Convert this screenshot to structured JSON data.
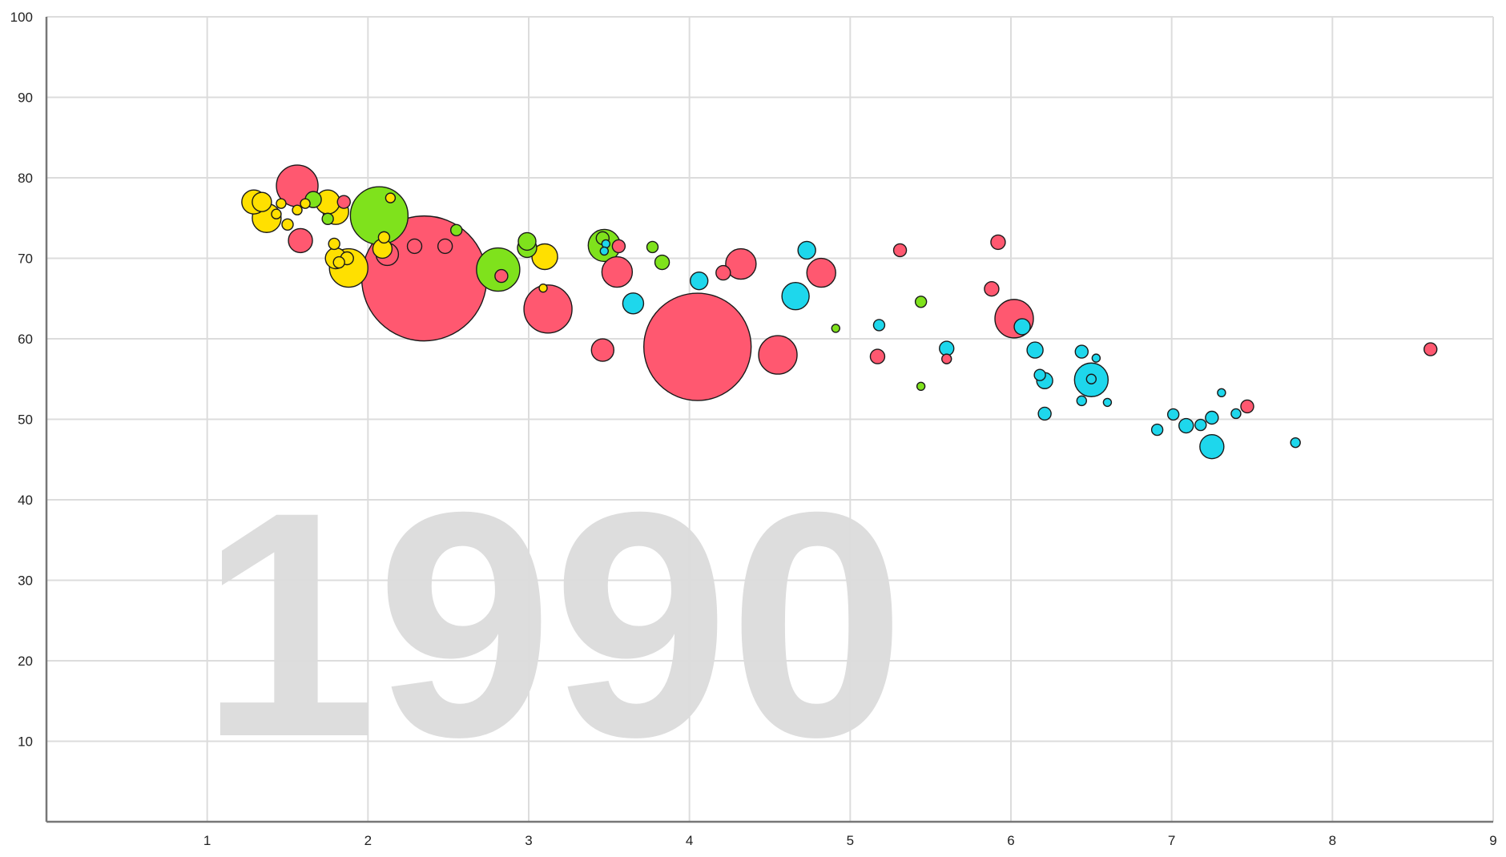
{
  "chart_data": {
    "type": "scatter",
    "title": "",
    "xlabel": "",
    "ylabel": "",
    "xlim": [
      0,
      9
    ],
    "ylim": [
      0,
      100
    ],
    "x_ticks": [
      1,
      2,
      3,
      4,
      5,
      6,
      7,
      8,
      9
    ],
    "y_ticks": [
      10,
      20,
      30,
      40,
      50,
      60,
      70,
      80,
      90,
      100
    ],
    "grid": true,
    "bubble_size_encodes": "population",
    "watermark": "1990",
    "colors": {
      "yellow": "#ffe000",
      "red": "#ff5870",
      "green": "#7fe21c",
      "cyan": "#1ed7ec"
    },
    "series": [
      {
        "color": "red",
        "points": [
          {
            "x": 2.35,
            "y": 67.5,
            "r": 78
          },
          {
            "x": 4.05,
            "y": 59.0,
            "r": 67
          },
          {
            "x": 1.56,
            "y": 79.0,
            "r": 26
          },
          {
            "x": 3.12,
            "y": 63.7,
            "r": 30
          },
          {
            "x": 4.55,
            "y": 58.0,
            "r": 24
          },
          {
            "x": 6.02,
            "y": 62.5,
            "r": 24
          },
          {
            "x": 3.55,
            "y": 68.3,
            "r": 19
          },
          {
            "x": 4.32,
            "y": 69.3,
            "r": 19
          },
          {
            "x": 4.82,
            "y": 68.2,
            "r": 18
          },
          {
            "x": 1.58,
            "y": 72.2,
            "r": 15
          },
          {
            "x": 3.46,
            "y": 58.6,
            "r": 14
          },
          {
            "x": 2.12,
            "y": 70.5,
            "r": 14
          },
          {
            "x": 2.29,
            "y": 71.5,
            "r": 9
          },
          {
            "x": 2.48,
            "y": 71.5,
            "r": 9
          },
          {
            "x": 1.85,
            "y": 77.0,
            "r": 8
          },
          {
            "x": 2.83,
            "y": 67.8,
            "r": 8
          },
          {
            "x": 3.56,
            "y": 71.5,
            "r": 8
          },
          {
            "x": 4.21,
            "y": 68.2,
            "r": 9
          },
          {
            "x": 5.31,
            "y": 71.0,
            "r": 8
          },
          {
            "x": 5.92,
            "y": 72.0,
            "r": 9
          },
          {
            "x": 5.88,
            "y": 66.2,
            "r": 9
          },
          {
            "x": 5.17,
            "y": 57.8,
            "r": 9
          },
          {
            "x": 5.6,
            "y": 57.5,
            "r": 6
          },
          {
            "x": 7.47,
            "y": 51.6,
            "r": 8
          },
          {
            "x": 8.61,
            "y": 58.7,
            "r": 8
          }
        ]
      },
      {
        "color": "yellow",
        "points": [
          {
            "x": 1.37,
            "y": 75.0,
            "r": 18
          },
          {
            "x": 1.29,
            "y": 77.0,
            "r": 15
          },
          {
            "x": 1.34,
            "y": 77.0,
            "r": 12
          },
          {
            "x": 1.75,
            "y": 77.0,
            "r": 15
          },
          {
            "x": 1.8,
            "y": 75.8,
            "r": 16
          },
          {
            "x": 1.88,
            "y": 68.8,
            "r": 24
          },
          {
            "x": 1.8,
            "y": 70.0,
            "r": 13
          },
          {
            "x": 3.1,
            "y": 70.2,
            "r": 16
          },
          {
            "x": 2.09,
            "y": 71.2,
            "r": 12
          },
          {
            "x": 1.87,
            "y": 70.0,
            "r": 8
          },
          {
            "x": 1.82,
            "y": 69.5,
            "r": 7
          },
          {
            "x": 1.79,
            "y": 71.8,
            "r": 7
          },
          {
            "x": 2.1,
            "y": 72.6,
            "r": 7
          },
          {
            "x": 2.14,
            "y": 77.5,
            "r": 6
          },
          {
            "x": 1.43,
            "y": 75.5,
            "r": 6
          },
          {
            "x": 1.56,
            "y": 76.0,
            "r": 6
          },
          {
            "x": 1.61,
            "y": 76.8,
            "r": 6
          },
          {
            "x": 1.46,
            "y": 76.8,
            "r": 6
          },
          {
            "x": 1.5,
            "y": 74.2,
            "r": 7
          },
          {
            "x": 3.09,
            "y": 66.3,
            "r": 5
          }
        ]
      },
      {
        "color": "green",
        "points": [
          {
            "x": 2.07,
            "y": 75.3,
            "r": 36
          },
          {
            "x": 2.81,
            "y": 68.6,
            "r": 27
          },
          {
            "x": 3.47,
            "y": 71.6,
            "r": 20
          },
          {
            "x": 2.99,
            "y": 71.3,
            "r": 12
          },
          {
            "x": 2.99,
            "y": 72.1,
            "r": 11
          },
          {
            "x": 1.66,
            "y": 77.3,
            "r": 10
          },
          {
            "x": 3.83,
            "y": 69.5,
            "r": 9
          },
          {
            "x": 3.46,
            "y": 72.5,
            "r": 8
          },
          {
            "x": 2.55,
            "y": 73.5,
            "r": 7
          },
          {
            "x": 3.77,
            "y": 71.4,
            "r": 7
          },
          {
            "x": 1.75,
            "y": 74.9,
            "r": 7
          },
          {
            "x": 5.44,
            "y": 64.6,
            "r": 7
          },
          {
            "x": 4.91,
            "y": 61.3,
            "r": 5
          },
          {
            "x": 5.44,
            "y": 54.1,
            "r": 5
          }
        ]
      },
      {
        "color": "cyan",
        "points": [
          {
            "x": 6.5,
            "y": 54.9,
            "r": 21
          },
          {
            "x": 4.66,
            "y": 65.3,
            "r": 17
          },
          {
            "x": 7.25,
            "y": 46.6,
            "r": 15
          },
          {
            "x": 3.65,
            "y": 64.4,
            "r": 13
          },
          {
            "x": 4.73,
            "y": 71.0,
            "r": 11
          },
          {
            "x": 4.06,
            "y": 67.2,
            "r": 11
          },
          {
            "x": 6.21,
            "y": 54.8,
            "r": 10
          },
          {
            "x": 6.15,
            "y": 58.6,
            "r": 10
          },
          {
            "x": 6.07,
            "y": 61.5,
            "r": 10
          },
          {
            "x": 5.6,
            "y": 58.8,
            "r": 9
          },
          {
            "x": 7.09,
            "y": 49.2,
            "r": 9
          },
          {
            "x": 7.25,
            "y": 50.2,
            "r": 8
          },
          {
            "x": 6.21,
            "y": 50.7,
            "r": 8
          },
          {
            "x": 6.44,
            "y": 58.4,
            "r": 8
          },
          {
            "x": 5.18,
            "y": 61.7,
            "r": 7
          },
          {
            "x": 6.18,
            "y": 55.5,
            "r": 7
          },
          {
            "x": 7.01,
            "y": 50.6,
            "r": 7
          },
          {
            "x": 6.91,
            "y": 48.7,
            "r": 7
          },
          {
            "x": 7.18,
            "y": 49.3,
            "r": 7
          },
          {
            "x": 7.4,
            "y": 50.7,
            "r": 6
          },
          {
            "x": 7.77,
            "y": 47.1,
            "r": 6
          },
          {
            "x": 6.5,
            "y": 55.0,
            "r": 6
          },
          {
            "x": 6.44,
            "y": 52.3,
            "r": 6
          },
          {
            "x": 6.53,
            "y": 57.6,
            "r": 5
          },
          {
            "x": 6.6,
            "y": 52.1,
            "r": 5
          },
          {
            "x": 7.31,
            "y": 53.3,
            "r": 5
          },
          {
            "x": 3.48,
            "y": 71.8,
            "r": 5
          },
          {
            "x": 3.47,
            "y": 70.9,
            "r": 5
          }
        ]
      }
    ]
  }
}
